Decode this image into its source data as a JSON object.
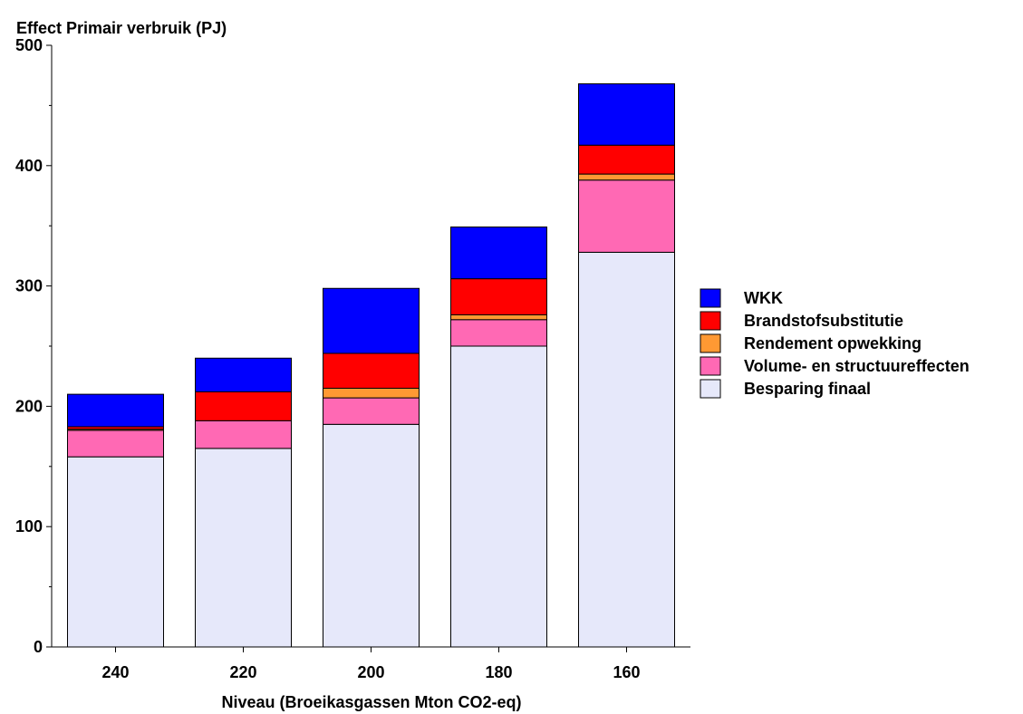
{
  "chart_data": {
    "type": "bar",
    "stacked": true,
    "ylabel": "Effect Primair verbruik (PJ)",
    "xlabel": "Niveau (Broeikasgassen Mton CO2-eq)",
    "categories": [
      "240",
      "220",
      "200",
      "180",
      "160"
    ],
    "ylim": [
      0,
      500
    ],
    "yticks": [
      "0",
      "100",
      "200",
      "300",
      "400",
      "500"
    ],
    "grid": false,
    "legend_position": "right",
    "series": [
      {
        "name": "Besparing finaal",
        "color": "#e6e8fa",
        "values": [
          158,
          165,
          185,
          250,
          328
        ]
      },
      {
        "name": "Volume- en structuureffecten",
        "color": "#ff69b4",
        "values": [
          22,
          23,
          22,
          22,
          60
        ]
      },
      {
        "name": "Rendement opwekking",
        "color": "#ff9933",
        "values": [
          1,
          0,
          8,
          4,
          5
        ]
      },
      {
        "name": "Brandstofsubstitutie",
        "color": "#ff0000",
        "values": [
          2,
          24,
          29,
          30,
          24
        ]
      },
      {
        "name": "WKK",
        "color": "#0000ff",
        "values": [
          27,
          28,
          54,
          43,
          51
        ]
      }
    ],
    "legend_order": [
      "WKK",
      "Brandstofsubstitutie",
      "Rendement opwekking",
      "Volume- en structuureffecten",
      "Besparing finaal"
    ]
  }
}
